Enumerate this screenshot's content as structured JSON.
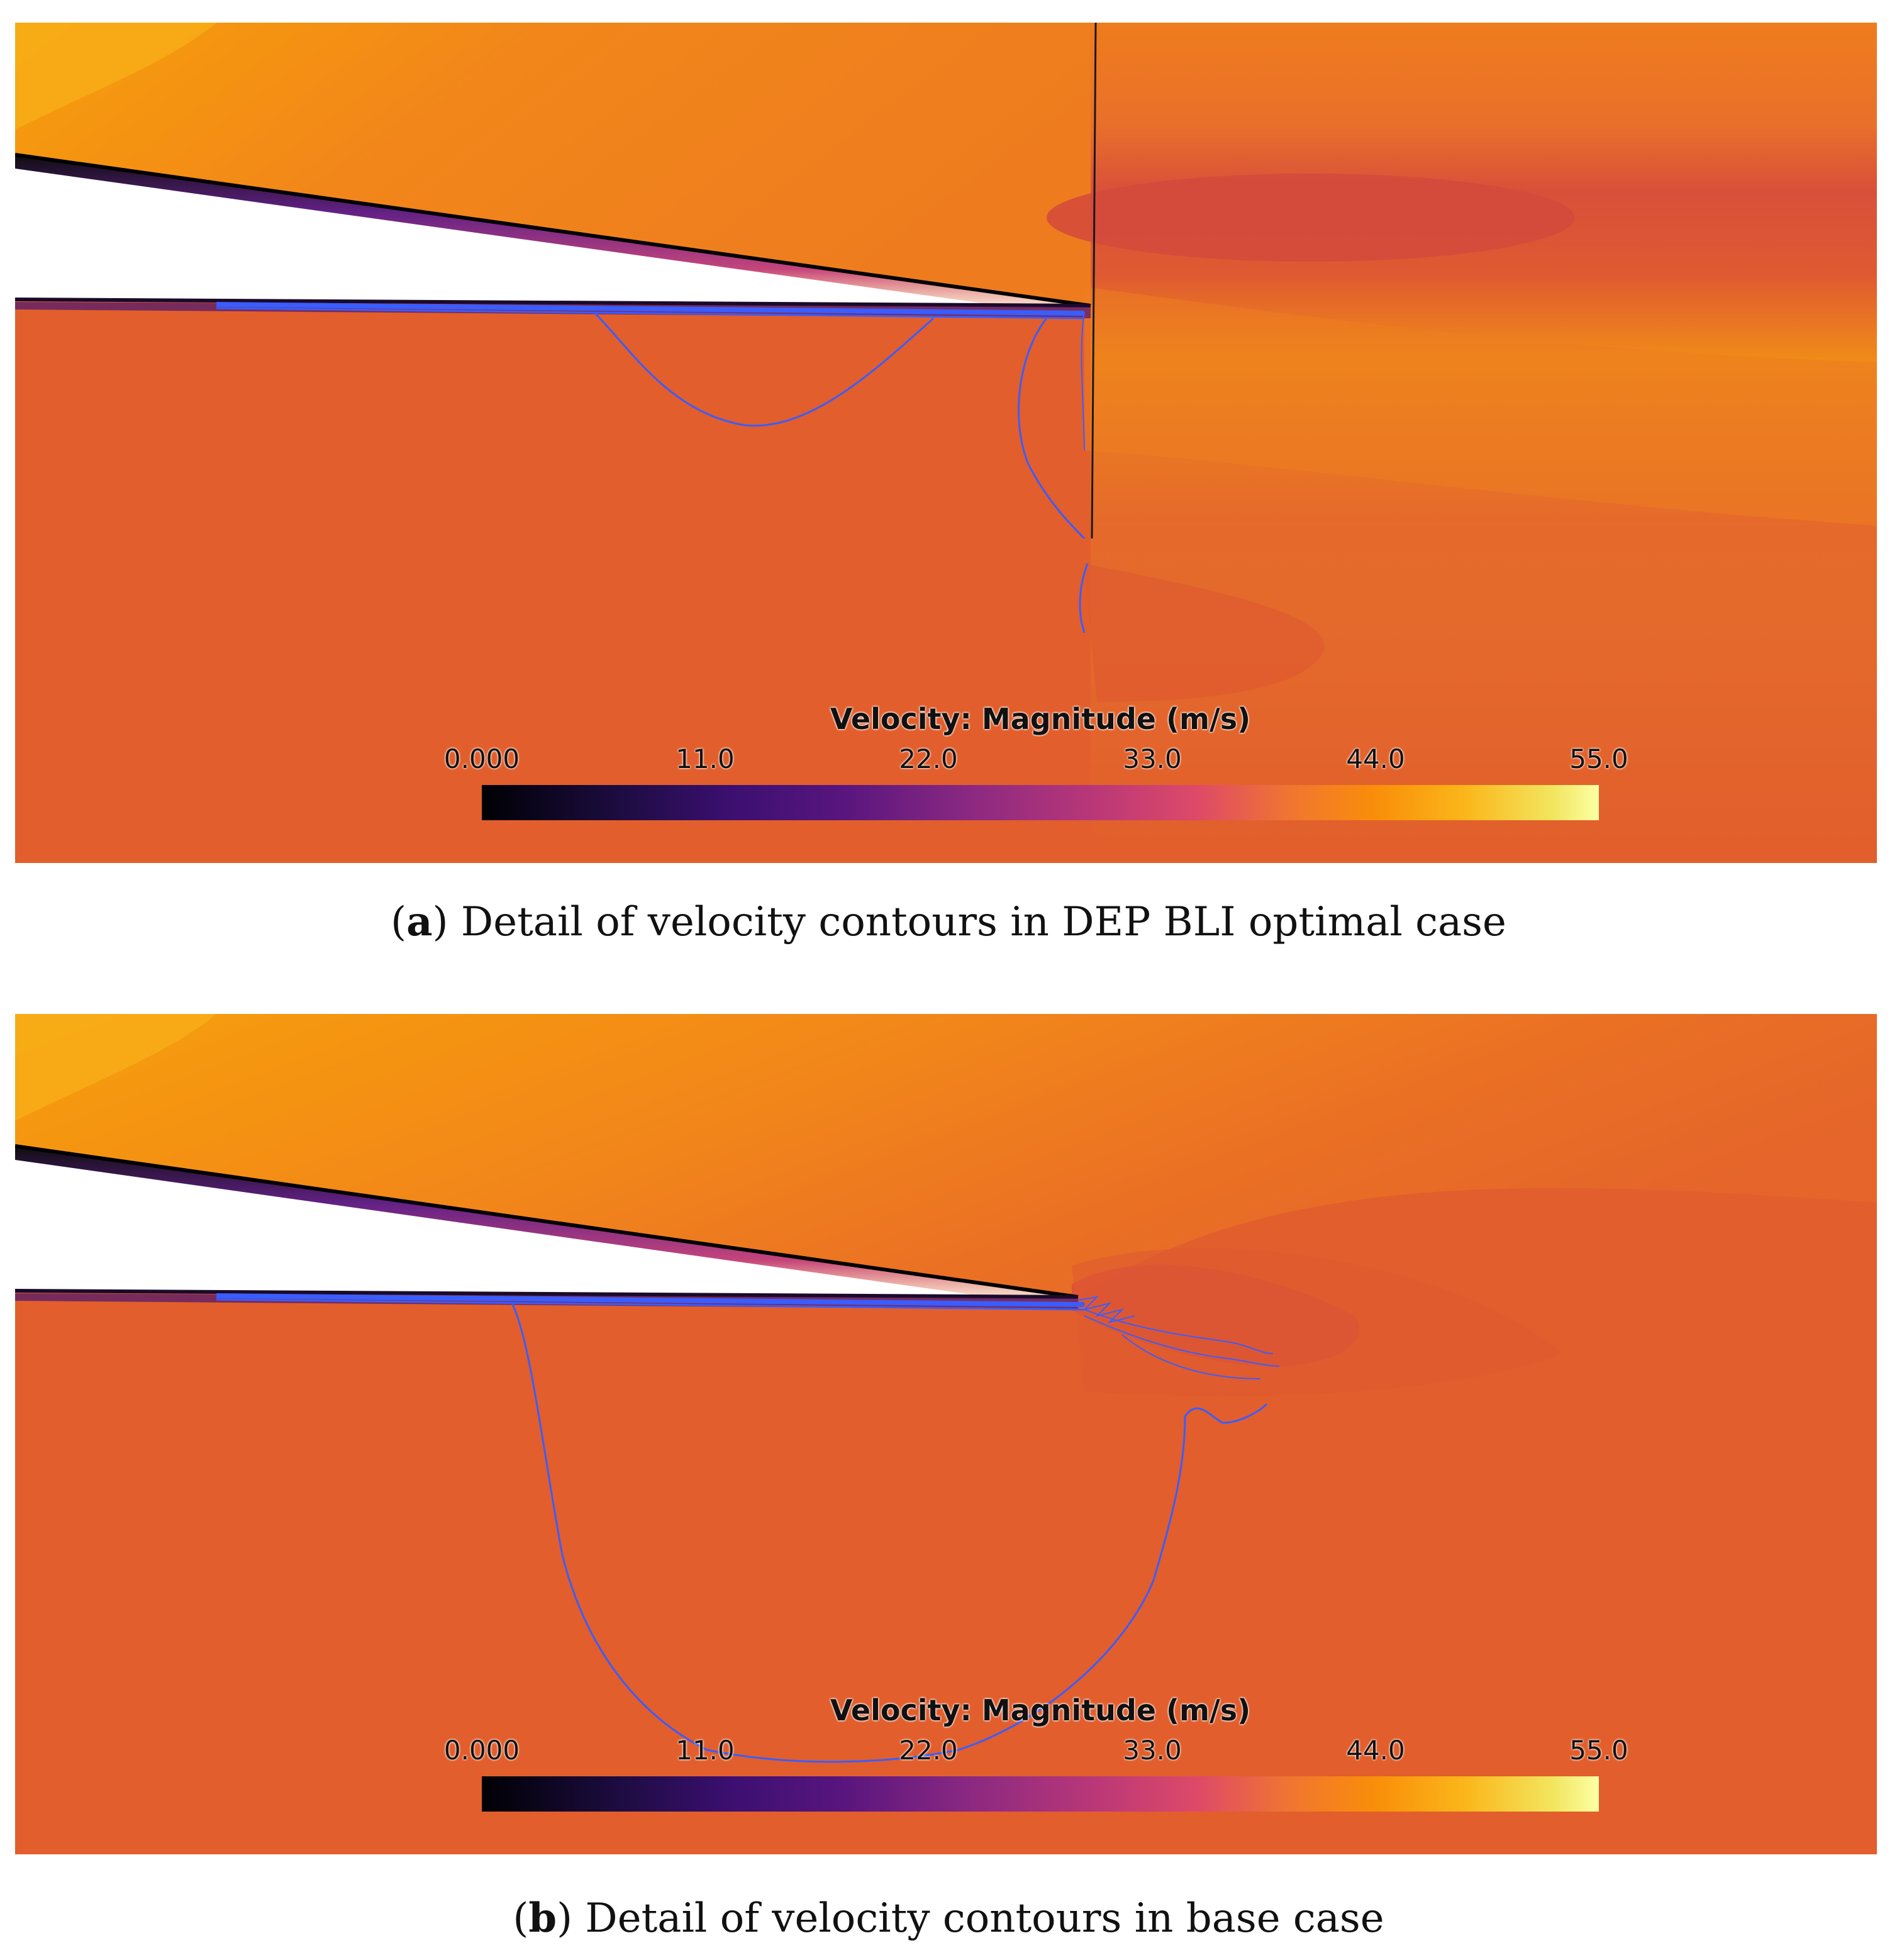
{
  "figure": {
    "panels": [
      {
        "id": "a",
        "caption_letter": "a",
        "caption_text": "Detail of velocity contours in DEP BLI optimal case",
        "colorbar": {
          "title": "Velocity: Magnitude (m/s)",
          "ticks": [
            "0.000",
            "11.0",
            "22.0",
            "33.0",
            "44.0",
            "55.0"
          ],
          "range": [
            0,
            55
          ],
          "colormap": "inferno"
        }
      },
      {
        "id": "b",
        "caption_letter": "b",
        "caption_text": "Detail of velocity contours in base case",
        "colorbar": {
          "title": "Velocity: Magnitude (m/s)",
          "ticks": [
            "0.000",
            "11.0",
            "22.0",
            "33.0",
            "44.0",
            "55.0"
          ],
          "range": [
            0,
            55
          ],
          "colormap": "inferno"
        }
      }
    ]
  },
  "colors": {
    "freestream": "#e25e2c",
    "upper_fast": "#f59a10",
    "wake_slow": "#d2483a",
    "streamline": "#3a5dff"
  }
}
